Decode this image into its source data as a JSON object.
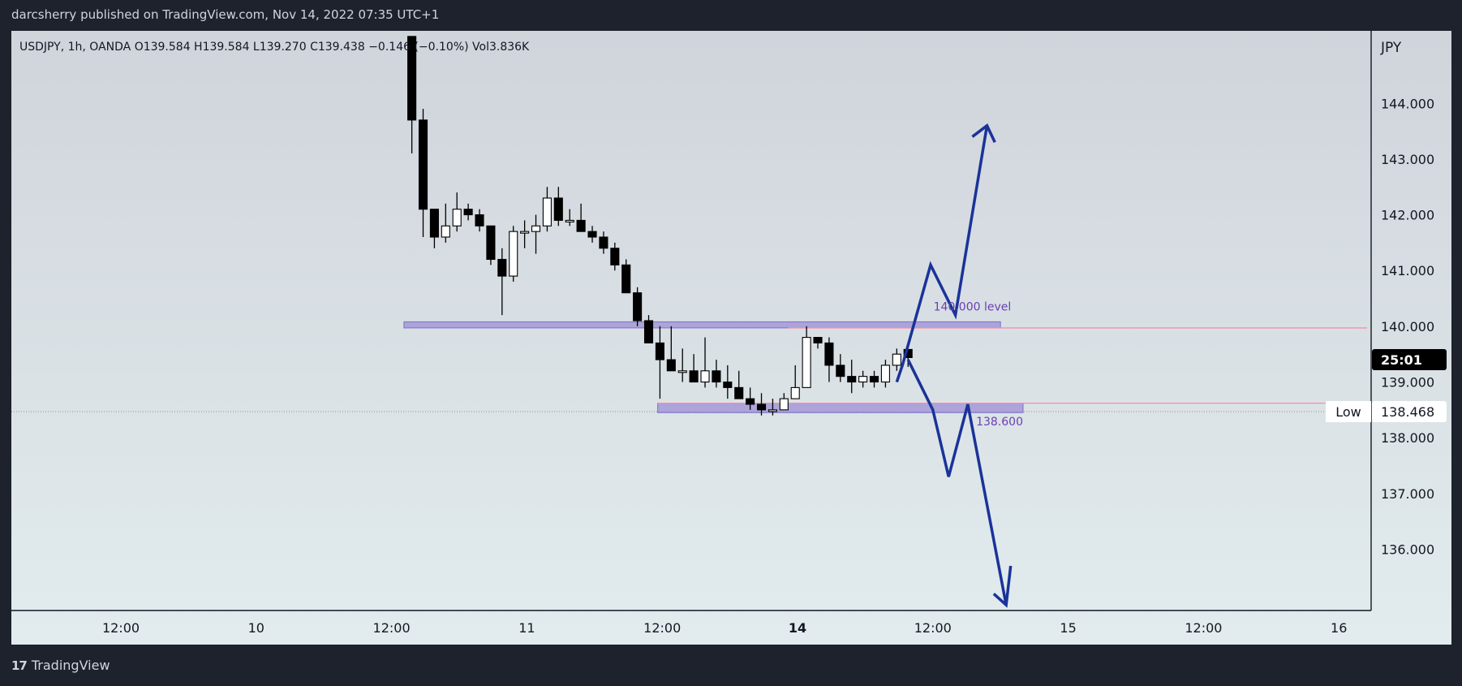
{
  "header": {
    "published": "darcsherry published on TradingView.com, Nov 14, 2022 07:35 UTC+1"
  },
  "footer": {
    "brand": "TradingView",
    "logo_glyph": "17"
  },
  "colors": {
    "bull": "#ffffff",
    "bear": "#000000",
    "zone": "#9c8fd6",
    "level_line": "#f48fb1",
    "arrow": "#1a3399",
    "annotation": "#6a3fb3"
  },
  "chart_data": {
    "type": "candlestick",
    "symbol_line": "USDJPY, 1h, OANDA  O139.584  H139.584  L139.270  C139.438  −0.146 (−0.10%)  Vol3.836K",
    "currency": "JPY",
    "ylim": [
      135.0,
      145.2
    ],
    "y_ticks": [
      "136.000",
      "137.000",
      "138.000",
      "139.000",
      "140.000",
      "141.000",
      "142.000",
      "143.000",
      "144.000"
    ],
    "x_ticks": [
      {
        "label": "12:00",
        "x": 0.0
      },
      {
        "label": "10",
        "x": 12.0
      },
      {
        "label": "12:00",
        "x": 24.0
      },
      {
        "label": "11",
        "x": 36.0
      },
      {
        "label": "12:00",
        "x": 48.0
      },
      {
        "label": "14",
        "x": 60.0,
        "bold": true
      },
      {
        "label": "12:00",
        "x": 72.0
      },
      {
        "label": "15",
        "x": 84.0
      },
      {
        "label": "12:00",
        "x": 96.0
      },
      {
        "label": "16",
        "x": 108.0
      }
    ],
    "candles": [
      {
        "x": 25.8,
        "o": 145.2,
        "h": 145.2,
        "l": 143.1,
        "c": 143.7
      },
      {
        "x": 26.8,
        "o": 143.7,
        "h": 143.9,
        "l": 141.6,
        "c": 142.1
      },
      {
        "x": 27.8,
        "o": 142.1,
        "h": 142.0,
        "l": 141.4,
        "c": 141.6
      },
      {
        "x": 28.8,
        "o": 141.6,
        "h": 142.2,
        "l": 141.5,
        "c": 141.8
      },
      {
        "x": 29.8,
        "o": 141.8,
        "h": 142.4,
        "l": 141.7,
        "c": 142.1
      },
      {
        "x": 30.8,
        "o": 142.1,
        "h": 142.2,
        "l": 141.9,
        "c": 142.0
      },
      {
        "x": 31.8,
        "o": 142.0,
        "h": 142.1,
        "l": 141.7,
        "c": 141.8
      },
      {
        "x": 32.8,
        "o": 141.8,
        "h": 141.8,
        "l": 141.1,
        "c": 141.2
      },
      {
        "x": 33.8,
        "o": 141.2,
        "h": 141.4,
        "l": 140.2,
        "c": 140.9
      },
      {
        "x": 34.8,
        "o": 140.9,
        "h": 141.8,
        "l": 140.8,
        "c": 141.7
      },
      {
        "x": 35.8,
        "o": 141.7,
        "h": 141.9,
        "l": 141.4,
        "c": 141.7
      },
      {
        "x": 36.8,
        "o": 141.7,
        "h": 142.0,
        "l": 141.3,
        "c": 141.8
      },
      {
        "x": 37.8,
        "o": 141.8,
        "h": 142.5,
        "l": 141.7,
        "c": 142.3
      },
      {
        "x": 38.8,
        "o": 142.3,
        "h": 142.5,
        "l": 141.8,
        "c": 141.9
      },
      {
        "x": 39.8,
        "o": 141.9,
        "h": 142.1,
        "l": 141.8,
        "c": 141.9
      },
      {
        "x": 40.8,
        "o": 141.9,
        "h": 142.2,
        "l": 141.7,
        "c": 141.7
      },
      {
        "x": 41.8,
        "o": 141.7,
        "h": 141.8,
        "l": 141.5,
        "c": 141.6
      },
      {
        "x": 42.8,
        "o": 141.6,
        "h": 141.7,
        "l": 141.3,
        "c": 141.4
      },
      {
        "x": 43.8,
        "o": 141.4,
        "h": 141.5,
        "l": 141.0,
        "c": 141.1
      },
      {
        "x": 44.8,
        "o": 141.1,
        "h": 141.2,
        "l": 140.6,
        "c": 140.6
      },
      {
        "x": 45.8,
        "o": 140.6,
        "h": 140.7,
        "l": 140.0,
        "c": 140.1
      },
      {
        "x": 46.8,
        "o": 140.1,
        "h": 140.2,
        "l": 139.7,
        "c": 139.7
      },
      {
        "x": 47.8,
        "o": 139.7,
        "h": 140.0,
        "l": 138.7,
        "c": 139.4
      },
      {
        "x": 48.8,
        "o": 139.4,
        "h": 140.0,
        "l": 139.2,
        "c": 139.2
      },
      {
        "x": 49.8,
        "o": 139.2,
        "h": 139.6,
        "l": 139.0,
        "c": 139.2
      },
      {
        "x": 50.8,
        "o": 139.2,
        "h": 139.5,
        "l": 139.0,
        "c": 139.0
      },
      {
        "x": 51.8,
        "o": 139.0,
        "h": 139.8,
        "l": 138.9,
        "c": 139.2
      },
      {
        "x": 52.8,
        "o": 139.2,
        "h": 139.4,
        "l": 138.9,
        "c": 139.0
      },
      {
        "x": 53.8,
        "o": 139.0,
        "h": 139.3,
        "l": 138.7,
        "c": 138.9
      },
      {
        "x": 54.8,
        "o": 138.9,
        "h": 139.2,
        "l": 138.7,
        "c": 138.7
      },
      {
        "x": 55.8,
        "o": 138.7,
        "h": 138.9,
        "l": 138.5,
        "c": 138.6
      },
      {
        "x": 56.8,
        "o": 138.6,
        "h": 138.8,
        "l": 138.4,
        "c": 138.5
      },
      {
        "x": 57.8,
        "o": 138.5,
        "h": 138.7,
        "l": 138.4,
        "c": 138.5
      },
      {
        "x": 58.8,
        "o": 138.5,
        "h": 138.8,
        "l": 138.5,
        "c": 138.7
      },
      {
        "x": 59.8,
        "o": 138.7,
        "h": 139.3,
        "l": 138.7,
        "c": 138.9
      },
      {
        "x": 60.8,
        "o": 138.9,
        "h": 140.0,
        "l": 138.9,
        "c": 139.8
      },
      {
        "x": 61.8,
        "o": 139.8,
        "h": 139.8,
        "l": 139.6,
        "c": 139.7
      },
      {
        "x": 62.8,
        "o": 139.7,
        "h": 139.8,
        "l": 139.0,
        "c": 139.3
      },
      {
        "x": 63.8,
        "o": 139.3,
        "h": 139.5,
        "l": 139.0,
        "c": 139.1
      },
      {
        "x": 64.8,
        "o": 139.1,
        "h": 139.4,
        "l": 138.8,
        "c": 139.0
      },
      {
        "x": 65.8,
        "o": 139.0,
        "h": 139.2,
        "l": 138.9,
        "c": 139.1
      },
      {
        "x": 66.8,
        "o": 139.1,
        "h": 139.2,
        "l": 138.9,
        "c": 139.0
      },
      {
        "x": 67.8,
        "o": 139.0,
        "h": 139.4,
        "l": 138.9,
        "c": 139.3
      },
      {
        "x": 68.8,
        "o": 139.3,
        "h": 139.6,
        "l": 139.2,
        "c": 139.5
      },
      {
        "x": 69.8,
        "o": 139.584,
        "h": 139.584,
        "l": 139.27,
        "c": 139.438
      }
    ],
    "zones": [
      {
        "x0": 25.1,
        "x1": 78.0,
        "y0": 139.97,
        "y1": 140.08
      },
      {
        "x0": 47.6,
        "x1": 80.0,
        "y0": 138.45,
        "y1": 138.62
      }
    ],
    "level_lines": [
      {
        "x0": 59.2,
        "x1": 110.5,
        "y": 139.97
      },
      {
        "x0": 47.6,
        "x1": 110.5,
        "y": 138.62
      }
    ],
    "annotations": [
      {
        "text": "140.000 level",
        "x": 75.5,
        "y": 140.28,
        "anchor": "middle"
      },
      {
        "text": "138.600",
        "x": 80.0,
        "y": 138.22,
        "anchor": "end"
      }
    ],
    "arrows": [
      {
        "points": [
          [
            68.8,
            139.0
          ],
          [
            69.3,
            139.3
          ],
          [
            71.8,
            141.1
          ],
          [
            74.0,
            140.2
          ],
          [
            76.8,
            143.6
          ]
        ],
        "head": [
          [
            75.5,
            143.4
          ],
          [
            76.8,
            143.6
          ],
          [
            77.5,
            143.3
          ]
        ]
      },
      {
        "points": [
          [
            69.8,
            139.4
          ],
          [
            72.0,
            138.5
          ],
          [
            73.4,
            137.3
          ],
          [
            75.1,
            138.6
          ],
          [
            78.5,
            135.0
          ]
        ],
        "head": [
          [
            77.4,
            135.2
          ],
          [
            78.5,
            135.0
          ],
          [
            78.9,
            135.7
          ]
        ]
      }
    ],
    "price_labels": [
      {
        "text": "25:01",
        "y": 139.4,
        "bg": "#000000",
        "fg": "#ffffff"
      },
      {
        "text": "138.468",
        "y": 138.468,
        "bg": "#ffffff",
        "fg": "#131722",
        "tag": "Low"
      }
    ],
    "low_dotted_y": 138.468
  }
}
